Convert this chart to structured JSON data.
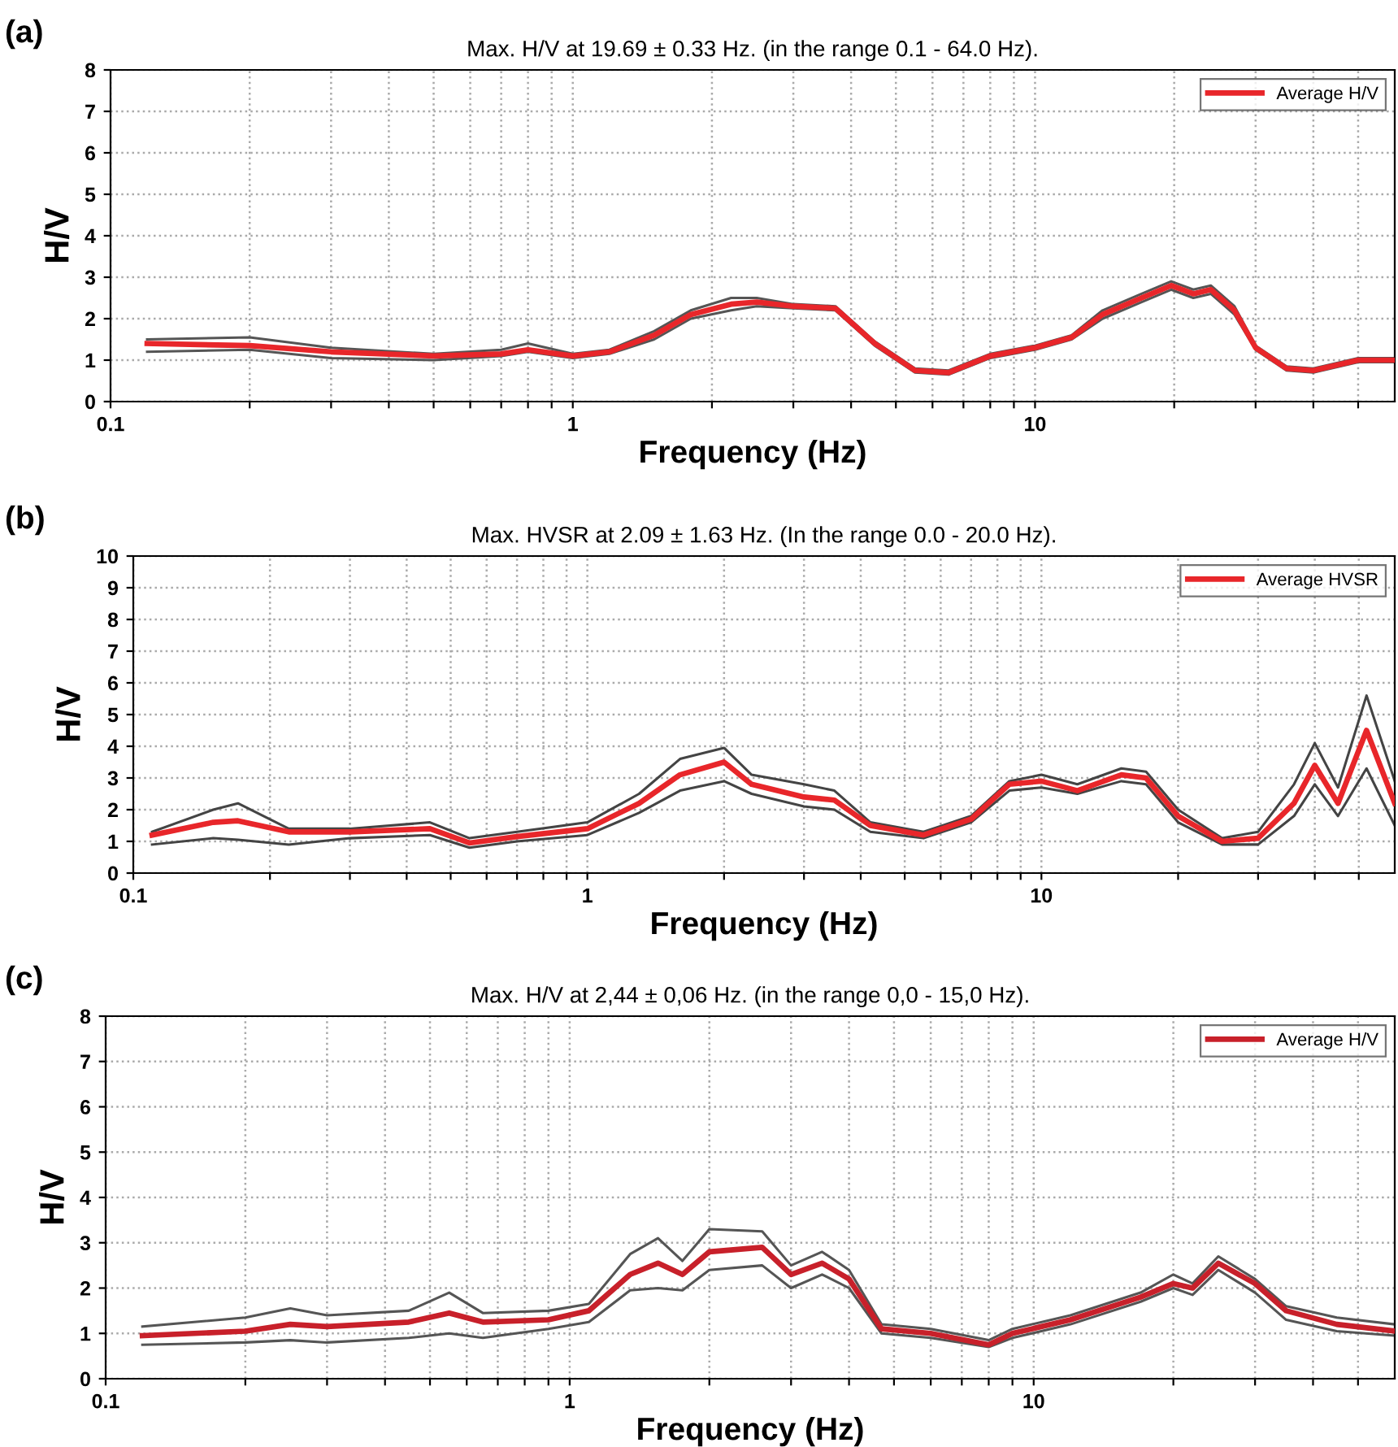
{
  "chart_data": [
    {
      "type": "line",
      "title": "Max. H/V at 19.69 ± 0.33 Hz. (in the range 0.1 - 64.0 Hz).",
      "xlabel": "Frequency (Hz)",
      "ylabel": "H/V",
      "annotations": [
        "(a)"
      ],
      "log": "x",
      "xlim": [
        0.1,
        60
      ],
      "ylim": [
        0,
        8
      ],
      "xticks": [
        0.1,
        {
          "value": 0.2,
          "label": null
        },
        {
          "value": 0.3,
          "label": null
        },
        {
          "value": 0.4,
          "label": null
        },
        {
          "value": 0.5,
          "label": null
        },
        {
          "value": 0.6,
          "label": null
        },
        {
          "value": 0.7,
          "label": null
        },
        {
          "value": 0.8,
          "label": null
        },
        {
          "value": 0.9,
          "label": null
        },
        1,
        {
          "value": 2,
          "label": null
        },
        {
          "value": 3,
          "label": null
        },
        {
          "value": 4,
          "label": null
        },
        {
          "value": 5,
          "label": null
        },
        {
          "value": 6,
          "label": null
        },
        {
          "value": 7,
          "label": null
        },
        {
          "value": 8,
          "label": null
        },
        {
          "value": 9,
          "label": null
        },
        10,
        {
          "value": 20,
          "label": null
        },
        {
          "value": 30,
          "label": null
        },
        {
          "value": 40,
          "label": null
        },
        {
          "value": 50,
          "label": null
        }
      ],
      "yticks": [
        0,
        1,
        2,
        3,
        4,
        5,
        6,
        7,
        8
      ],
      "grid": true,
      "legend": "top right",
      "line_style": "solid",
      "series": [
        {
          "color": "#555555",
          "x": [
            0.12,
            0.2,
            0.3,
            0.5,
            0.7,
            0.8,
            1.0,
            1.2,
            1.5,
            1.8,
            2.2,
            2.5,
            3,
            3.7,
            4.5,
            5.5,
            6.5,
            8,
            10,
            12,
            14,
            17,
            19.7,
            22,
            24,
            27,
            30,
            35,
            40,
            50,
            60
          ],
          "values": [
            1.5,
            1.55,
            1.3,
            1.15,
            1.25,
            1.4,
            1.15,
            1.25,
            1.7,
            2.2,
            2.5,
            2.5,
            2.35,
            2.3,
            1.45,
            0.8,
            0.75,
            1.15,
            1.35,
            1.6,
            2.2,
            2.6,
            2.9,
            2.7,
            2.8,
            2.3,
            1.35,
            0.85,
            0.8,
            1.05,
            1.05
          ]
        },
        {
          "color": "#555555",
          "x": [
            0.12,
            0.2,
            0.3,
            0.5,
            0.7,
            0.8,
            1.0,
            1.2,
            1.5,
            1.8,
            2.2,
            2.5,
            3,
            3.7,
            4.5,
            5.5,
            6.5,
            8,
            10,
            12,
            14,
            17,
            19.7,
            22,
            24,
            27,
            30,
            35,
            40,
            50,
            60
          ],
          "values": [
            1.2,
            1.25,
            1.05,
            1.0,
            1.1,
            1.2,
            1.05,
            1.15,
            1.5,
            2.0,
            2.2,
            2.3,
            2.25,
            2.2,
            1.35,
            0.7,
            0.65,
            1.05,
            1.25,
            1.5,
            2.0,
            2.4,
            2.7,
            2.5,
            2.6,
            2.1,
            1.25,
            0.75,
            0.7,
            0.95,
            0.95
          ]
        },
        {
          "name": "Average H/V",
          "color": "#e8262a",
          "x": [
            0.12,
            0.2,
            0.3,
            0.5,
            0.7,
            0.8,
            1.0,
            1.2,
            1.5,
            1.8,
            2.2,
            2.5,
            3,
            3.7,
            4.5,
            5.5,
            6.5,
            8,
            10,
            12,
            14,
            17,
            19.7,
            22,
            24,
            27,
            30,
            35,
            40,
            50,
            60
          ],
          "values": [
            1.4,
            1.35,
            1.2,
            1.1,
            1.15,
            1.25,
            1.1,
            1.2,
            1.6,
            2.1,
            2.35,
            2.4,
            2.3,
            2.25,
            1.4,
            0.75,
            0.7,
            1.1,
            1.3,
            1.55,
            2.1,
            2.5,
            2.8,
            2.6,
            2.7,
            2.2,
            1.3,
            0.8,
            0.75,
            1.0,
            1.0
          ]
        }
      ]
    },
    {
      "type": "line",
      "title": "Max. HVSR at 2.09 ± 1.63 Hz. (In the range 0.0 - 20.0 Hz).",
      "xlabel": "Frequency (Hz)",
      "ylabel": "H/V",
      "annotations": [
        "(b)"
      ],
      "log": "x",
      "xlim": [
        0.1,
        60
      ],
      "ylim": [
        0,
        10
      ],
      "xticks": [
        0.1,
        {
          "value": 0.2,
          "label": null
        },
        {
          "value": 0.3,
          "label": null
        },
        {
          "value": 0.4,
          "label": null
        },
        {
          "value": 0.5,
          "label": null
        },
        {
          "value": 0.6,
          "label": null
        },
        {
          "value": 0.7,
          "label": null
        },
        {
          "value": 0.8,
          "label": null
        },
        {
          "value": 0.9,
          "label": null
        },
        1,
        {
          "value": 2,
          "label": null
        },
        {
          "value": 3,
          "label": null
        },
        {
          "value": 4,
          "label": null
        },
        {
          "value": 5,
          "label": null
        },
        {
          "value": 6,
          "label": null
        },
        {
          "value": 7,
          "label": null
        },
        {
          "value": 8,
          "label": null
        },
        {
          "value": 9,
          "label": null
        },
        10,
        {
          "value": 20,
          "label": null
        },
        {
          "value": 30,
          "label": null
        },
        {
          "value": 40,
          "label": null
        },
        {
          "value": 50,
          "label": null
        }
      ],
      "yticks": [
        0,
        1,
        2,
        3,
        4,
        5,
        6,
        7,
        8,
        9,
        10
      ],
      "grid": true,
      "legend": "top right",
      "line_style": "solid",
      "series": [
        {
          "color": "#444444",
          "x": [
            0.11,
            0.15,
            0.17,
            0.22,
            0.3,
            0.45,
            0.55,
            0.7,
            1.0,
            1.3,
            1.6,
            2.0,
            2.3,
            3.0,
            3.5,
            4.2,
            5.5,
            7,
            8.5,
            10,
            12,
            15,
            17,
            20,
            25,
            30,
            36,
            40,
            45,
            52,
            60
          ],
          "values": [
            1.3,
            2.0,
            2.2,
            1.4,
            1.4,
            1.6,
            1.1,
            1.3,
            1.6,
            2.5,
            3.6,
            3.95,
            3.1,
            2.8,
            2.6,
            1.6,
            1.3,
            1.8,
            2.9,
            3.1,
            2.8,
            3.3,
            3.2,
            2.0,
            1.1,
            1.3,
            2.8,
            4.1,
            2.7,
            5.6,
            2.9
          ]
        },
        {
          "color": "#444444",
          "x": [
            0.11,
            0.15,
            0.17,
            0.22,
            0.3,
            0.45,
            0.55,
            0.7,
            1.0,
            1.3,
            1.6,
            2.0,
            2.3,
            3.0,
            3.5,
            4.2,
            5.5,
            7,
            8.5,
            10,
            12,
            15,
            17,
            20,
            25,
            30,
            36,
            40,
            45,
            52,
            60
          ],
          "values": [
            0.9,
            1.1,
            1.05,
            0.9,
            1.1,
            1.2,
            0.8,
            1.0,
            1.2,
            1.9,
            2.6,
            2.9,
            2.5,
            2.1,
            2.0,
            1.3,
            1.1,
            1.6,
            2.6,
            2.7,
            2.5,
            2.9,
            2.8,
            1.6,
            0.9,
            0.9,
            1.8,
            2.8,
            1.8,
            3.3,
            1.5
          ]
        },
        {
          "name": "Average HVSR",
          "color": "#e8262a",
          "x": [
            0.11,
            0.15,
            0.17,
            0.22,
            0.3,
            0.45,
            0.55,
            0.7,
            1.0,
            1.3,
            1.6,
            2.0,
            2.3,
            3.0,
            3.5,
            4.2,
            5.5,
            7,
            8.5,
            10,
            12,
            15,
            17,
            20,
            25,
            30,
            36,
            40,
            45,
            52,
            60
          ],
          "values": [
            1.2,
            1.6,
            1.65,
            1.3,
            1.3,
            1.4,
            0.95,
            1.15,
            1.4,
            2.2,
            3.1,
            3.5,
            2.8,
            2.4,
            2.3,
            1.5,
            1.2,
            1.7,
            2.8,
            2.9,
            2.6,
            3.1,
            3.0,
            1.8,
            1.0,
            1.1,
            2.2,
            3.4,
            2.2,
            4.5,
            2.2
          ]
        }
      ]
    },
    {
      "type": "line",
      "title": "Max. H/V at 2,44 ± 0,06 Hz. (in the range 0,0 - 15,0 Hz).",
      "xlabel": "Frequency (Hz)",
      "ylabel": "H/V",
      "annotations": [
        "(c)"
      ],
      "log": "x",
      "xlim": [
        0.1,
        60
      ],
      "ylim": [
        0,
        8
      ],
      "xticks": [
        0.1,
        {
          "value": 0.2,
          "label": null
        },
        {
          "value": 0.3,
          "label": null
        },
        {
          "value": 0.4,
          "label": null
        },
        {
          "value": 0.5,
          "label": null
        },
        {
          "value": 0.6,
          "label": null
        },
        {
          "value": 0.7,
          "label": null
        },
        {
          "value": 0.8,
          "label": null
        },
        {
          "value": 0.9,
          "label": null
        },
        1,
        {
          "value": 2,
          "label": null
        },
        {
          "value": 3,
          "label": null
        },
        {
          "value": 4,
          "label": null
        },
        {
          "value": 5,
          "label": null
        },
        {
          "value": 6,
          "label": null
        },
        {
          "value": 7,
          "label": null
        },
        {
          "value": 8,
          "label": null
        },
        {
          "value": 9,
          "label": null
        },
        10,
        {
          "value": 20,
          "label": null
        },
        {
          "value": 30,
          "label": null
        },
        {
          "value": 40,
          "label": null
        },
        {
          "value": 50,
          "label": null
        }
      ],
      "yticks": [
        0,
        1,
        2,
        3,
        4,
        5,
        6,
        7,
        8
      ],
      "grid": true,
      "legend": "top right",
      "line_style": "solid",
      "series": [
        {
          "color": "#555555",
          "x": [
            0.12,
            0.2,
            0.25,
            0.3,
            0.45,
            0.55,
            0.65,
            0.9,
            1.1,
            1.35,
            1.55,
            1.75,
            2.0,
            2.6,
            3.0,
            3.5,
            4.0,
            4.7,
            6,
            8,
            9,
            12,
            17,
            20,
            22,
            25,
            30,
            35,
            45,
            60
          ],
          "values": [
            1.15,
            1.35,
            1.55,
            1.4,
            1.5,
            1.9,
            1.45,
            1.5,
            1.65,
            2.75,
            3.1,
            2.6,
            3.3,
            3.25,
            2.5,
            2.8,
            2.4,
            1.2,
            1.1,
            0.85,
            1.1,
            1.4,
            1.9,
            2.3,
            2.1,
            2.7,
            2.2,
            1.6,
            1.35,
            1.2
          ]
        },
        {
          "color": "#555555",
          "x": [
            0.12,
            0.2,
            0.25,
            0.3,
            0.45,
            0.55,
            0.65,
            0.9,
            1.1,
            1.35,
            1.55,
            1.75,
            2.0,
            2.6,
            3.0,
            3.5,
            4.0,
            4.7,
            6,
            8,
            9,
            12,
            17,
            20,
            22,
            25,
            30,
            35,
            45,
            60
          ],
          "values": [
            0.75,
            0.8,
            0.85,
            0.8,
            0.9,
            1.0,
            0.9,
            1.1,
            1.25,
            1.95,
            2.0,
            1.95,
            2.4,
            2.5,
            2.0,
            2.3,
            2.0,
            1.0,
            0.9,
            0.7,
            0.9,
            1.2,
            1.7,
            2.0,
            1.85,
            2.4,
            1.9,
            1.3,
            1.05,
            0.95
          ]
        },
        {
          "name": "Average H/V",
          "color": "#c8202a",
          "x": [
            0.12,
            0.2,
            0.25,
            0.3,
            0.45,
            0.55,
            0.65,
            0.9,
            1.1,
            1.35,
            1.55,
            1.75,
            2.0,
            2.6,
            3.0,
            3.5,
            4.0,
            4.7,
            6,
            8,
            9,
            12,
            17,
            20,
            22,
            25,
            30,
            35,
            45,
            60
          ],
          "values": [
            0.95,
            1.05,
            1.2,
            1.15,
            1.25,
            1.45,
            1.25,
            1.3,
            1.5,
            2.3,
            2.55,
            2.3,
            2.8,
            2.9,
            2.3,
            2.55,
            2.2,
            1.1,
            1.0,
            0.75,
            1.0,
            1.3,
            1.8,
            2.1,
            2.0,
            2.55,
            2.1,
            1.5,
            1.2,
            1.05
          ]
        }
      ]
    }
  ]
}
